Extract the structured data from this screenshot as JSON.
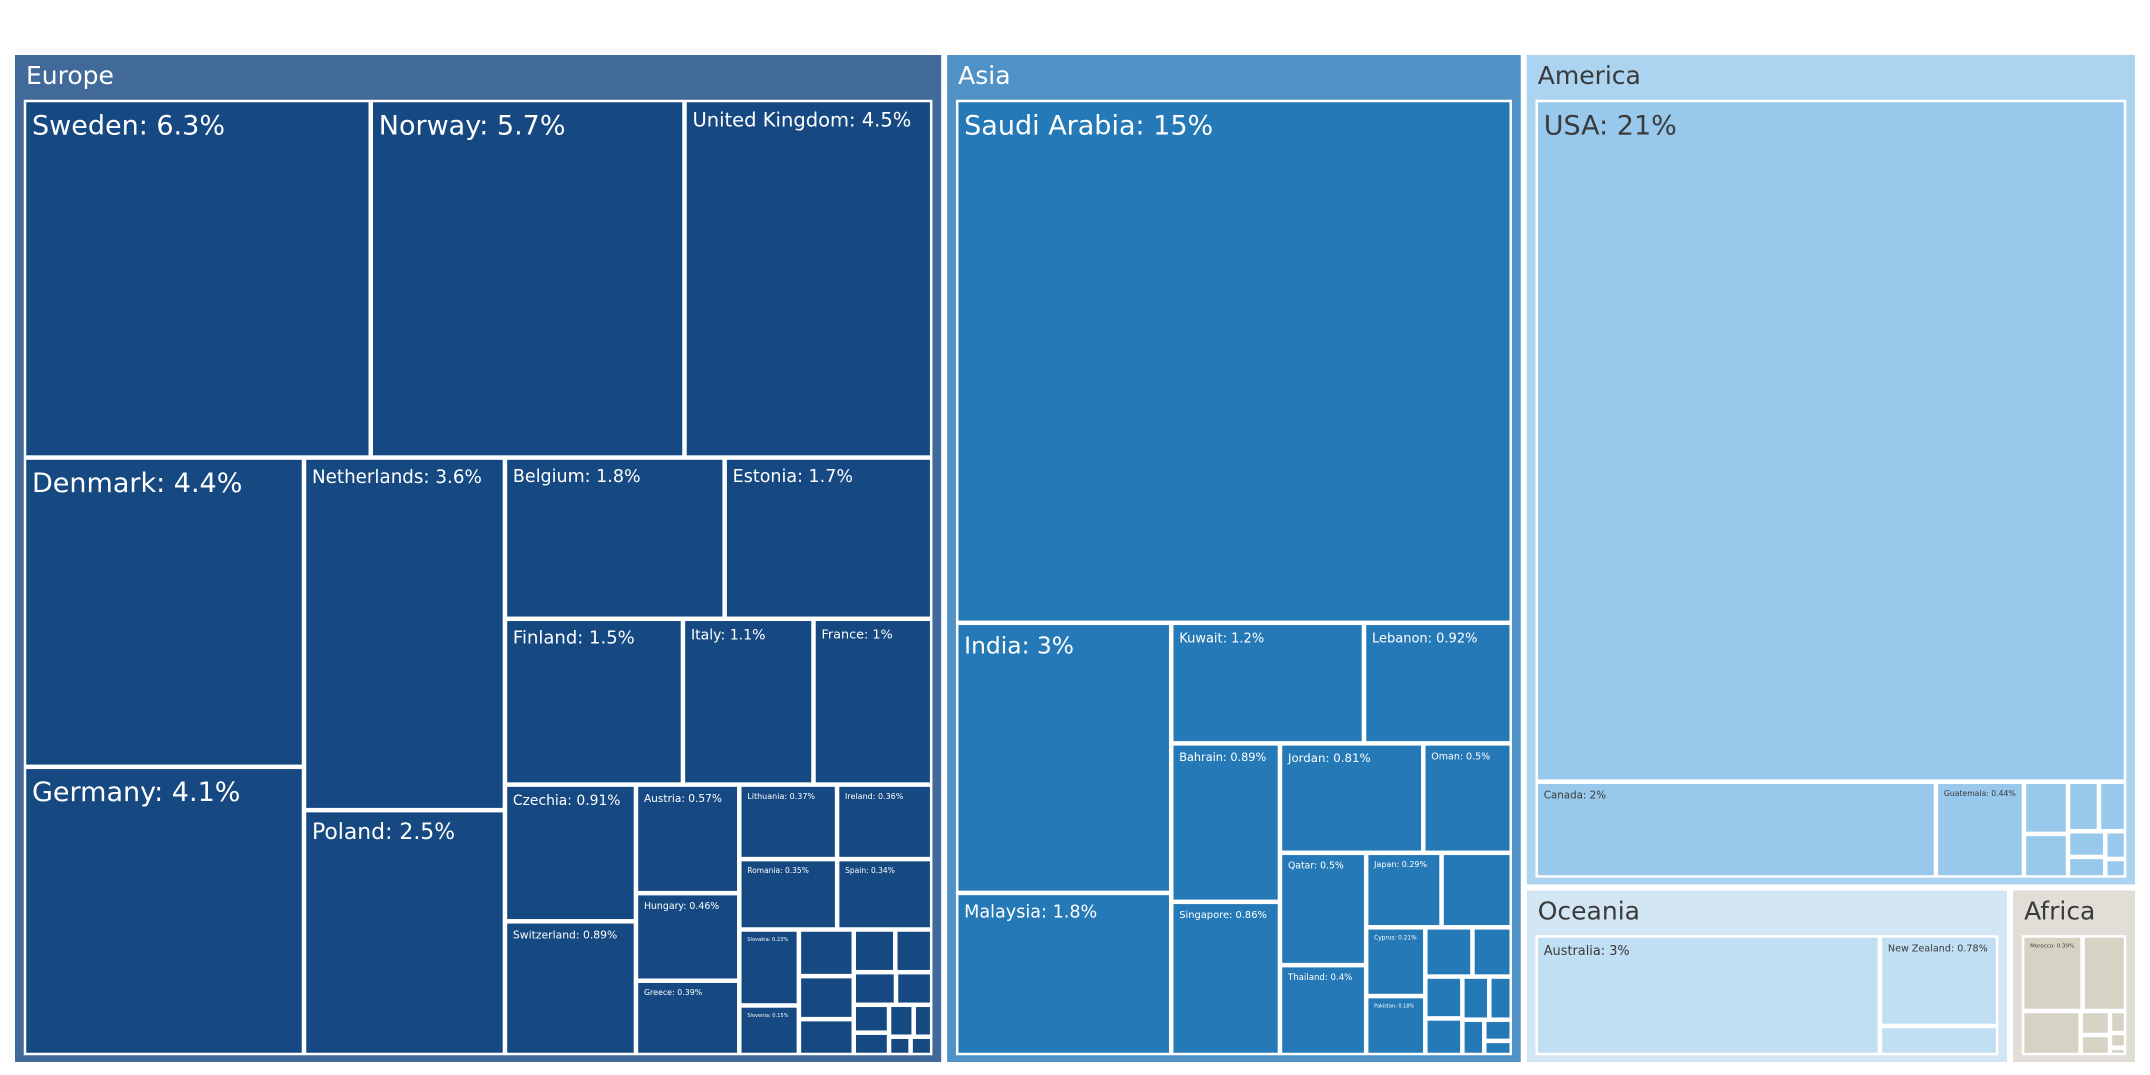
{
  "chart_data": {
    "type": "treemap",
    "regions": [
      {
        "name": "Europe",
        "color": "#41699a",
        "leaf_color": "#164881",
        "label_color": "#ffffff",
        "items": [
          {
            "label": "Sweden: 6.3%",
            "value": 6.3
          },
          {
            "label": "Norway: 5.7%",
            "value": 5.7
          },
          {
            "label": "United Kingdom: 4.5%",
            "value": 4.5
          },
          {
            "label": "Denmark: 4.4%",
            "value": 4.4
          },
          {
            "label": "Netherlands: 3.6%",
            "value": 3.6
          },
          {
            "label": "Belgium: 1.8%",
            "value": 1.8
          },
          {
            "label": "Estonia: 1.7%",
            "value": 1.7
          },
          {
            "label": "Finland: 1.5%",
            "value": 1.5
          },
          {
            "label": "Italy: 1.1%",
            "value": 1.1
          },
          {
            "label": "France: 1%",
            "value": 1.0
          },
          {
            "label": "Germany: 4.1%",
            "value": 4.1
          },
          {
            "label": "Poland: 2.5%",
            "value": 2.5
          },
          {
            "label": "Czechia: 0.91%",
            "value": 0.91
          },
          {
            "label": "Switzerland: 0.89%",
            "value": 0.89
          },
          {
            "label": "Austria: 0.57%",
            "value": 0.57
          },
          {
            "label": "Hungary: 0.46%",
            "value": 0.46
          },
          {
            "label": "Greece: 0.39%",
            "value": 0.39
          },
          {
            "label": "Lithuania: 0.37%",
            "value": 0.37
          },
          {
            "label": "Ireland: 0.36%",
            "value": 0.36
          },
          {
            "label": "Romania: 0.35%",
            "value": 0.35
          },
          {
            "label": "Spain: 0.34%",
            "value": 0.34
          },
          {
            "label": "Slovakia: 0.23%",
            "value": 0.23
          },
          {
            "label": "Slovenia: 0.15%",
            "value": 0.15
          },
          {
            "label": "",
            "value": 0.13
          },
          {
            "label": "",
            "value": 0.12
          },
          {
            "label": "",
            "value": 0.1
          },
          {
            "label": "",
            "value": 0.09
          },
          {
            "label": "",
            "value": 0.08
          },
          {
            "label": "",
            "value": 0.07
          },
          {
            "label": "",
            "value": 0.06
          },
          {
            "label": "",
            "value": 0.05
          },
          {
            "label": "",
            "value": 0.04
          },
          {
            "label": "",
            "value": 0.04
          },
          {
            "label": "",
            "value": 0.03
          },
          {
            "label": "",
            "value": 0.02
          },
          {
            "label": "",
            "value": 0.02
          }
        ]
      },
      {
        "name": "Asia",
        "color": "#5092c5",
        "leaf_color": "#2679b7",
        "label_color": "#ffffff",
        "items": [
          {
            "label": "Saudi Arabia: 15%",
            "value": 15
          },
          {
            "label": "India: 3%",
            "value": 3
          },
          {
            "label": "Malaysia: 1.8%",
            "value": 1.8
          },
          {
            "label": "Kuwait: 1.2%",
            "value": 1.2
          },
          {
            "label": "Lebanon: 0.92%",
            "value": 0.92
          },
          {
            "label": "Bahrain: 0.89%",
            "value": 0.89
          },
          {
            "label": "Singapore: 0.86%",
            "value": 0.86
          },
          {
            "label": "Jordan: 0.81%",
            "value": 0.81
          },
          {
            "label": "Oman: 0.5%",
            "value": 0.5
          },
          {
            "label": "Qatar: 0.5%",
            "value": 0.5
          },
          {
            "label": "Thailand: 0.4%",
            "value": 0.4
          },
          {
            "label": "Japan: 0.29%",
            "value": 0.29
          },
          {
            "label": "",
            "value": 0.27
          },
          {
            "label": "Cyprus: 0.21%",
            "value": 0.21
          },
          {
            "label": "Pakistan: 0.18%",
            "value": 0.18
          },
          {
            "label": "",
            "value": 0.12
          },
          {
            "label": "",
            "value": 0.1
          },
          {
            "label": "",
            "value": 0.08
          },
          {
            "label": "",
            "value": 0.07
          },
          {
            "label": "",
            "value": 0.06
          },
          {
            "label": "",
            "value": 0.05
          },
          {
            "label": "",
            "value": 0.04
          },
          {
            "label": "",
            "value": 0.03
          },
          {
            "label": "",
            "value": 0.02
          }
        ]
      },
      {
        "name": "America",
        "color": "#acd4f0",
        "leaf_color": "#98c8eb",
        "label_color": "#3a3a3a",
        "items": [
          {
            "label": "USA: 21%",
            "value": 21
          },
          {
            "label": "Canada: 2%",
            "value": 2
          },
          {
            "label": "Guatemala: 0.44%",
            "value": 0.44
          },
          {
            "label": "",
            "value": 0.12
          },
          {
            "label": "",
            "value": 0.1
          },
          {
            "label": "",
            "value": 0.08
          },
          {
            "label": "",
            "value": 0.07
          },
          {
            "label": "",
            "value": 0.05
          },
          {
            "label": "",
            "value": 0.04
          },
          {
            "label": "",
            "value": 0.03
          },
          {
            "label": "",
            "value": 0.02
          }
        ]
      },
      {
        "name": "Oceania",
        "color": "#d3e6f4",
        "leaf_color": "#c1dff3",
        "label_color": "#3a3a3a",
        "items": [
          {
            "label": "Australia: 3%",
            "value": 3
          },
          {
            "label": "New Zealand: 0.78%",
            "value": 0.78
          },
          {
            "label": "",
            "value": 0.25
          }
        ]
      },
      {
        "name": "Africa",
        "color": "#e0ded6",
        "leaf_color": "#d6d3c4",
        "label_color": "#3a3a3a",
        "items": [
          {
            "label": "Morocco: 0.39%",
            "value": 0.39
          },
          {
            "label": "",
            "value": 0.28
          },
          {
            "label": "",
            "value": 0.22
          },
          {
            "label": "",
            "value": 0.06
          },
          {
            "label": "",
            "value": 0.05
          },
          {
            "label": "",
            "value": 0.03
          },
          {
            "label": "",
            "value": 0.02
          },
          {
            "label": "",
            "value": 0.01
          }
        ]
      }
    ]
  }
}
